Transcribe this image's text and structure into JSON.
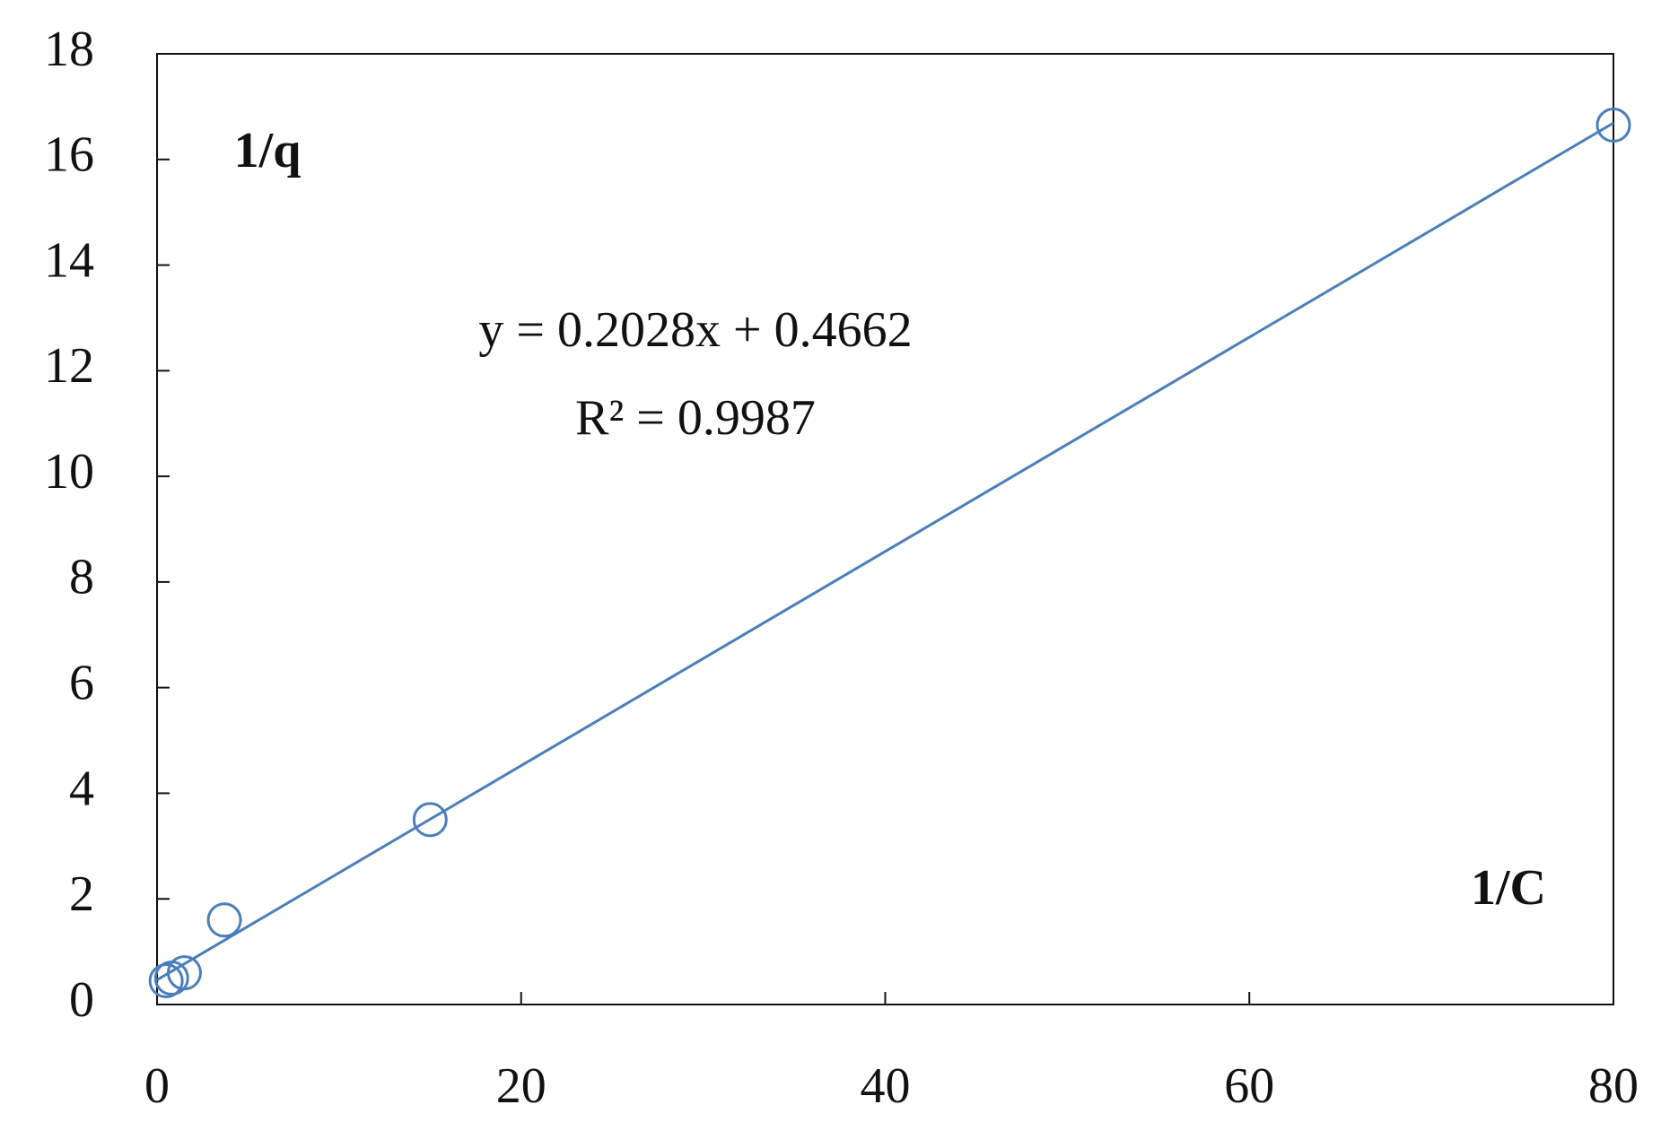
{
  "chart_data": {
    "type": "scatter",
    "x": [
      0.5,
      0.8,
      1.5,
      3.7,
      15,
      80
    ],
    "values": [
      0.45,
      0.5,
      0.6,
      1.6,
      3.5,
      16.65
    ],
    "color": "#4a7ebb",
    "xlim": [
      0,
      80
    ],
    "xticks": [
      0,
      20,
      40,
      60,
      80
    ],
    "ylim": [
      0,
      18
    ],
    "yticks": [
      0,
      2,
      4,
      6,
      8,
      10,
      12,
      14,
      16,
      18
    ],
    "x_label": "1/C",
    "y_label": "1/q",
    "trendline": {
      "slope": 0.2028,
      "intercept": 0.4662,
      "equation": "y = 0.2028x + 0.4662",
      "r2": "R² = 0.9987"
    }
  }
}
